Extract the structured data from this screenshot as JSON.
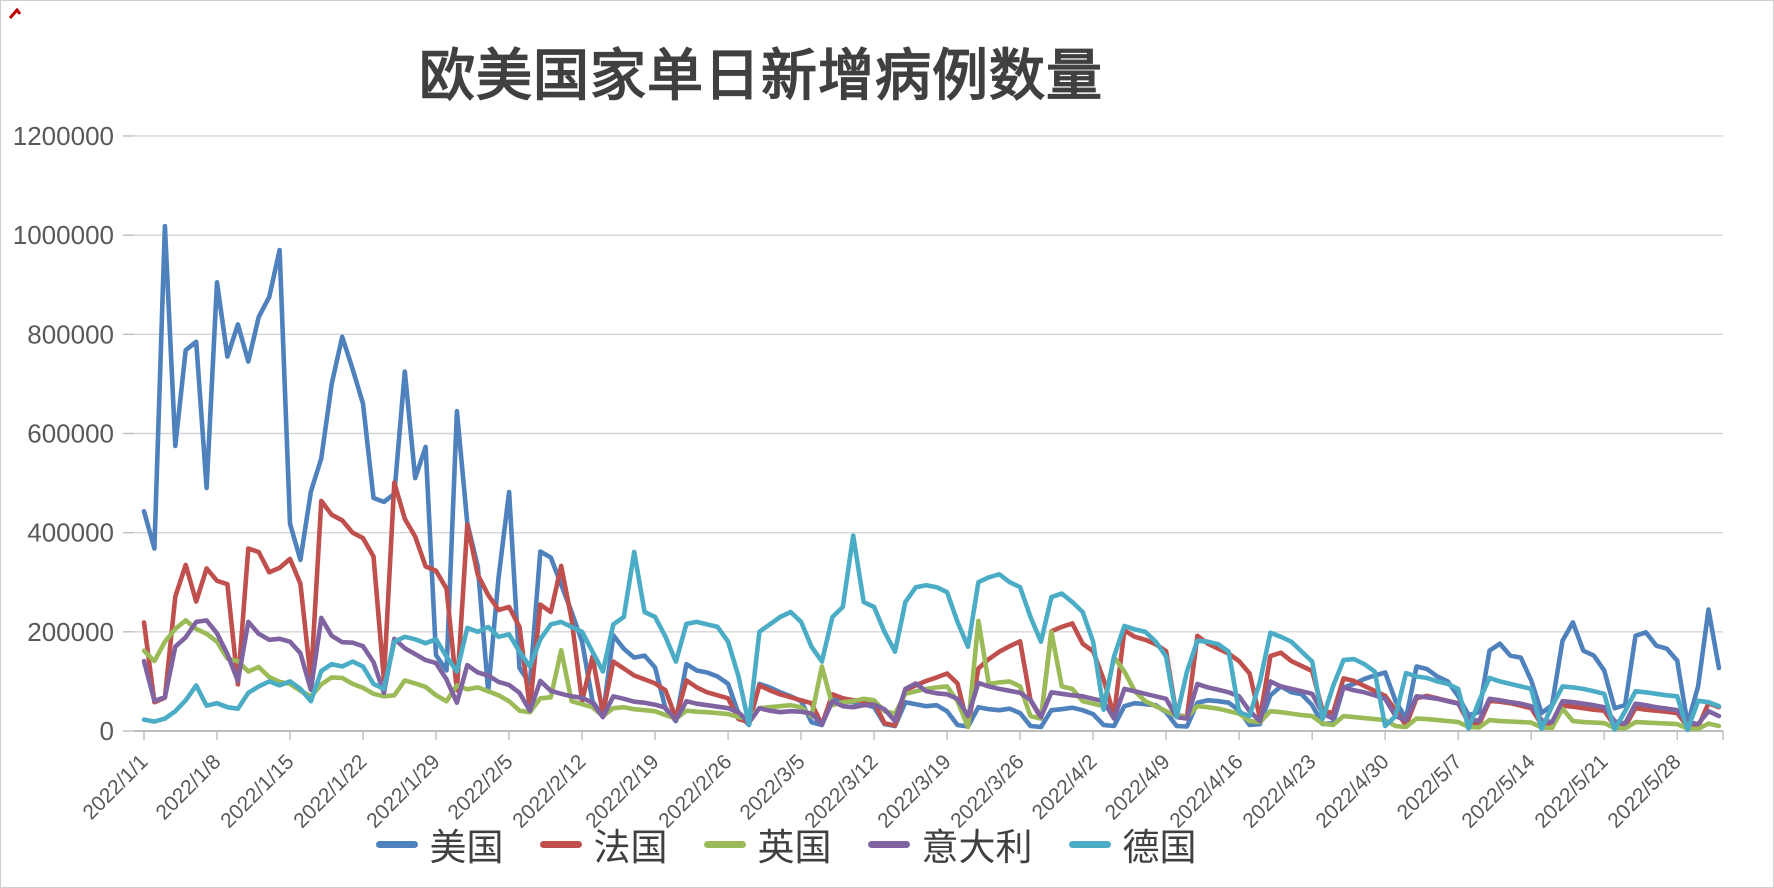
{
  "title": "欧美国家单日新增病例数量",
  "colors": {
    "us": "#4F81BD",
    "france": "#C0504D",
    "uk": "#9BBB59",
    "italy": "#8064A2",
    "germany": "#4BACC6",
    "gridline": "#D6D6D6",
    "axis": "#BDBDBD",
    "tick_label": "#595959",
    "title_text": "#404040",
    "corner_artifact": "#C00000"
  },
  "axis": {
    "y_tick_labels": [
      "0",
      "200000",
      "400000",
      "600000",
      "800000",
      "1000000",
      "1200000"
    ],
    "x_tick_labels": [
      "2022/1/1",
      "2022/1/8",
      "2022/1/15",
      "2022/1/22",
      "2022/1/29",
      "2022/2/5",
      "2022/2/12",
      "2022/2/19",
      "2022/2/26",
      "2022/3/5",
      "2022/3/12",
      "2022/3/19",
      "2022/3/26",
      "2022/4/2",
      "2022/4/9",
      "2022/4/16",
      "2022/4/23",
      "2022/4/30",
      "2022/5/7",
      "2022/5/14",
      "2022/5/21",
      "2022/5/28"
    ]
  },
  "legend_labels": [
    "美国",
    "法国",
    "英国",
    "意大利",
    "德国"
  ],
  "chart_data": {
    "type": "line",
    "title": "欧美国家单日新增病例数量",
    "xlabel": "",
    "ylabel": "",
    "ylim": [
      0,
      1200000
    ],
    "y_tick_step": 200000,
    "grid": "horizontal",
    "legend_position": "bottom",
    "sampling": "daily values, 2022/1/1 through 2022/6/1",
    "x_tick_labels": [
      "2022/1/1",
      "2022/1/8",
      "2022/1/15",
      "2022/1/22",
      "2022/1/29",
      "2022/2/5",
      "2022/2/12",
      "2022/2/19",
      "2022/2/26",
      "2022/3/5",
      "2022/3/12",
      "2022/3/19",
      "2022/3/26",
      "2022/4/2",
      "2022/4/9",
      "2022/4/16",
      "2022/4/23",
      "2022/4/30",
      "2022/5/7",
      "2022/5/14",
      "2022/5/21",
      "2022/5/28"
    ],
    "series": [
      {
        "name": "美国",
        "color": "#4F81BD",
        "values": [
          443000,
          368000,
          1018000,
          575000,
          768000,
          785000,
          490000,
          905000,
          755000,
          820000,
          745000,
          835000,
          875000,
          970000,
          418000,
          345000,
          483000,
          550000,
          700000,
          795000,
          730000,
          660000,
          470000,
          462000,
          478000,
          725000,
          510000,
          573000,
          153000,
          122000,
          645000,
          419000,
          332000,
          80000,
          310000,
          482000,
          127000,
          95000,
          362000,
          350000,
          295000,
          240000,
          180000,
          60000,
          30000,
          193000,
          166000,
          148000,
          152000,
          128000,
          45000,
          20000,
          135000,
          122000,
          118000,
          110000,
          95000,
          35000,
          12000,
          95000,
          88000,
          78000,
          70000,
          60000,
          18000,
          12000,
          67000,
          62000,
          58000,
          54000,
          48000,
          14000,
          10000,
          58000,
          54000,
          50000,
          52000,
          40000,
          12000,
          9000,
          48000,
          44000,
          42000,
          45000,
          36000,
          10000,
          8000,
          42000,
          44000,
          47000,
          42000,
          34000,
          12000,
          10000,
          50000,
          56000,
          54000,
          52000,
          38000,
          10000,
          9000,
          57000,
          62000,
          60000,
          57000,
          42000,
          12000,
          14000,
          72000,
          90000,
          78000,
          74000,
          52000,
          14000,
          16000,
          88000,
          95000,
          105000,
          112000,
          118000,
          60000,
          25000,
          130000,
          125000,
          110000,
          100000,
          70000,
          32000,
          38000,
          162000,
          176000,
          152000,
          148000,
          102000,
          36000,
          52000,
          182000,
          219000,
          162000,
          152000,
          122000,
          46000,
          52000,
          192000,
          199000,
          172000,
          166000,
          142000,
          14000,
          90000,
          245000,
          127000
        ]
      },
      {
        "name": "法国",
        "color": "#C0504D",
        "values": [
          219000,
          58000,
          67000,
          271000,
          335000,
          261000,
          328000,
          303000,
          296000,
          94000,
          368000,
          361000,
          320000,
          329000,
          347000,
          297000,
          102000,
          464000,
          436000,
          425000,
          400000,
          389000,
          352000,
          104000,
          501000,
          428000,
          392000,
          332000,
          323000,
          287000,
          82000,
          416000,
          315000,
          274000,
          244000,
          250000,
          210000,
          46000,
          255000,
          240000,
          333000,
          225000,
          60000,
          150000,
          35000,
          140000,
          126000,
          112000,
          104000,
          96000,
          82000,
          26000,
          102000,
          88000,
          78000,
          72000,
          66000,
          24000,
          18000,
          92000,
          82000,
          74000,
          68000,
          62000,
          56000,
          13000,
          74000,
          66000,
          62000,
          60000,
          57000,
          16000,
          11000,
          82000,
          92000,
          101000,
          108000,
          116000,
          96000,
          10000,
          126000,
          145000,
          160000,
          171000,
          181000,
          62000,
          26000,
          201000,
          210000,
          217000,
          176000,
          161000,
          104000,
          31000,
          203000,
          190000,
          184000,
          175000,
          161000,
          31000,
          29000,
          192000,
          176000,
          166000,
          156000,
          141000,
          116000,
          26000,
          151000,
          158000,
          141000,
          131000,
          121000,
          41000,
          36000,
          106000,
          101000,
          91000,
          81000,
          71000,
          42000,
          11000,
          66000,
          71000,
          66000,
          61000,
          56000,
          16000,
          13000,
          61000,
          59000,
          56000,
          51000,
          46000,
          13000,
          11000,
          51000,
          49000,
          46000,
          43000,
          41000,
          11000,
          9000,
          46000,
          43000,
          41000,
          39000,
          36000,
          9000,
          8000,
          56000,
          48000
        ]
      },
      {
        "name": "英国",
        "color": "#9BBB59",
        "values": [
          162000,
          141000,
          180000,
          206000,
          223000,
          206000,
          196000,
          180000,
          146000,
          141000,
          120000,
          129000,
          109000,
          99000,
          95000,
          81000,
          70000,
          94000,
          108000,
          107000,
          95000,
          87000,
          75000,
          70000,
          72000,
          102000,
          96000,
          89000,
          72000,
          60000,
          92000,
          84000,
          88000,
          80000,
          72000,
          60000,
          41000,
          38000,
          66000,
          68000,
          163000,
          60000,
          54000,
          48000,
          30000,
          46000,
          48000,
          44000,
          42000,
          40000,
          32000,
          25000,
          41000,
          39000,
          38000,
          36000,
          34000,
          28000,
          24000,
          46000,
          48000,
          50000,
          52000,
          48000,
          30000,
          130000,
          52000,
          58000,
          60000,
          65000,
          62000,
          40000,
          35000,
          75000,
          80000,
          85000,
          88000,
          90000,
          60000,
          8000,
          222000,
          95000,
          98000,
          100000,
          90000,
          30000,
          25000,
          200000,
          90000,
          85000,
          60000,
          55000,
          50000,
          149000,
          120000,
          80000,
          60000,
          50000,
          40000,
          30000,
          28000,
          50000,
          48000,
          45000,
          40000,
          35000,
          20000,
          18000,
          40000,
          38000,
          35000,
          32000,
          30000,
          15000,
          12000,
          30000,
          28000,
          26000,
          24000,
          22000,
          10000,
          8000,
          25000,
          24000,
          22000,
          20000,
          18000,
          8000,
          7000,
          22000,
          20000,
          19000,
          18000,
          17000,
          7000,
          6000,
          45000,
          20000,
          18000,
          17000,
          16000,
          6000,
          5000,
          18000,
          17000,
          16000,
          15000,
          14000,
          5000,
          4000,
          15000,
          10000
        ]
      },
      {
        "name": "意大利",
        "color": "#8064A2",
        "values": [
          141000,
          61000,
          68000,
          170000,
          189000,
          220000,
          223000,
          197000,
          155000,
          101000,
          220000,
          196000,
          184000,
          186000,
          180000,
          157000,
          83000,
          228000,
          192000,
          179000,
          178000,
          171000,
          139000,
          77000,
          186000,
          167000,
          155000,
          143000,
          137000,
          104000,
          57000,
          133000,
          118000,
          112000,
          99000,
          93000,
          77000,
          41000,
          101000,
          81000,
          75000,
          70000,
          67000,
          57000,
          28000,
          70000,
          65000,
          59000,
          57000,
          53000,
          47000,
          22000,
          60000,
          55000,
          52000,
          49000,
          46000,
          38000,
          17000,
          46000,
          41000,
          38000,
          40000,
          39000,
          35000,
          13000,
          60000,
          50000,
          48000,
          52000,
          53000,
          44000,
          20000,
          85000,
          96000,
          80000,
          76000,
          74000,
          65000,
          30000,
          97000,
          90000,
          85000,
          81000,
          77000,
          63000,
          28000,
          78000,
          75000,
          72000,
          70000,
          65000,
          60000,
          25000,
          85000,
          80000,
          75000,
          70000,
          65000,
          28000,
          25000,
          95000,
          88000,
          83000,
          78000,
          70000,
          40000,
          20000,
          100000,
          90000,
          85000,
          80000,
          75000,
          35000,
          25000,
          88000,
          82000,
          78000,
          72000,
          65000,
          30000,
          22000,
          70000,
          68000,
          65000,
          60000,
          55000,
          25000,
          20000,
          65000,
          62000,
          58000,
          55000,
          50000,
          22000,
          18000,
          60000,
          58000,
          55000,
          52000,
          48000,
          20000,
          15000,
          55000,
          52000,
          48000,
          45000,
          42000,
          18000,
          14000,
          40000,
          30000
        ]
      },
      {
        "name": "德国",
        "color": "#4BACC6",
        "values": [
          23000,
          19000,
          25000,
          40000,
          62000,
          92000,
          51000,
          56000,
          48000,
          45000,
          77000,
          90000,
          100000,
          92000,
          100000,
          85000,
          60000,
          121000,
          135000,
          130000,
          140000,
          130000,
          95000,
          85000,
          180000,
          190000,
          185000,
          177000,
          185000,
          150000,
          120000,
          208000,
          200000,
          210000,
          190000,
          195000,
          160000,
          130000,
          185000,
          215000,
          220000,
          210000,
          200000,
          160000,
          120000,
          215000,
          230000,
          361000,
          240000,
          230000,
          190000,
          140000,
          216000,
          220000,
          215000,
          210000,
          180000,
          110000,
          14000,
          200000,
          215000,
          230000,
          240000,
          220000,
          170000,
          140000,
          230000,
          250000,
          394000,
          260000,
          250000,
          200000,
          160000,
          260000,
          290000,
          294000,
          290000,
          280000,
          220000,
          170000,
          300000,
          310000,
          316000,
          300000,
          290000,
          230000,
          180000,
          270000,
          277000,
          260000,
          240000,
          180000,
          43000,
          150000,
          212000,
          205000,
          200000,
          180000,
          150000,
          28000,
          120000,
          182000,
          180000,
          175000,
          160000,
          38000,
          30000,
          100000,
          198000,
          190000,
          180000,
          160000,
          140000,
          24000,
          90000,
          143000,
          145000,
          135000,
          120000,
          10000,
          30000,
          117000,
          110000,
          107000,
          100000,
          95000,
          85000,
          5000,
          60000,
          107000,
          100000,
          95000,
          90000,
          85000,
          4000,
          50000,
          90000,
          88000,
          85000,
          80000,
          75000,
          3000,
          40000,
          80000,
          78000,
          75000,
          72000,
          70000,
          2000,
          61000,
          58000,
          50000
        ]
      }
    ]
  }
}
